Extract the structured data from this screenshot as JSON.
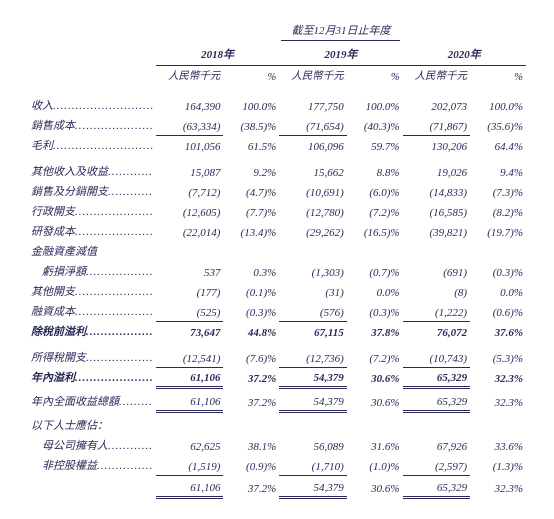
{
  "header": {
    "summary_title": "截至12月31日止年度",
    "years": [
      "2018年",
      "2019年",
      "2020年"
    ],
    "sub_num": "人民幣千元",
    "sub_pct": "%"
  },
  "rows": [
    {
      "type": "data",
      "label": "收入",
      "v": [
        "164,390",
        "100.0%",
        "177,750",
        "100.0%",
        "202,073",
        "100.0%"
      ],
      "gap": "sect-gap"
    },
    {
      "type": "data",
      "label": "銷售成本",
      "v": [
        "(63,334)",
        "(38.5)%",
        "(71,654)",
        "(40.3)%",
        "(71,867)",
        "(35.6)%"
      ],
      "underline_num": true
    },
    {
      "type": "data",
      "label": "毛利",
      "v": [
        "101,056",
        "61.5%",
        "106,096",
        "59.7%",
        "130,206",
        "64.4%"
      ]
    },
    {
      "type": "data",
      "label": "其他收入及收益",
      "v": [
        "15,087",
        "9.2%",
        "15,662",
        "8.8%",
        "19,026",
        "9.4%"
      ],
      "gap": "sect-gap"
    },
    {
      "type": "data",
      "label": "銷售及分銷開支",
      "v": [
        "(7,712)",
        "(4.7)%",
        "(10,691)",
        "(6.0)%",
        "(14,833)",
        "(7.3)%"
      ]
    },
    {
      "type": "data",
      "label": "行政開支",
      "v": [
        "(12,605)",
        "(7.7)%",
        "(12,780)",
        "(7.2)%",
        "(16,585)",
        "(8.2)%"
      ]
    },
    {
      "type": "data",
      "label": "研發成本",
      "v": [
        "(22,014)",
        "(13.4)%",
        "(29,262)",
        "(16.5)%",
        "(39,821)",
        "(19.7)%"
      ]
    },
    {
      "type": "plain",
      "label": "金融資產減值"
    },
    {
      "type": "data",
      "label": "　虧損淨額",
      "v": [
        "537",
        "0.3%",
        "(1,303)",
        "(0.7)%",
        "(691)",
        "(0.3)%"
      ]
    },
    {
      "type": "data",
      "label": "其他開支",
      "v": [
        "(177)",
        "(0.1)%",
        "(31)",
        "0.0%",
        "(8)",
        "0.0%"
      ]
    },
    {
      "type": "data",
      "label": "融資成本",
      "v": [
        "(525)",
        "(0.3)%",
        "(576)",
        "(0.3)%",
        "(1,222)",
        "(0.6)%"
      ],
      "underline_num": true
    },
    {
      "type": "data",
      "label": "除稅前溢利",
      "v": [
        "73,647",
        "44.8%",
        "67,115",
        "37.8%",
        "76,072",
        "37.6%"
      ],
      "bold": true
    },
    {
      "type": "data",
      "label": "所得稅開支",
      "v": [
        "(12,541)",
        "(7.6)%",
        "(12,736)",
        "(7.2)%",
        "(10,743)",
        "(5.3)%"
      ],
      "gap": "sect-gap",
      "underline_num": true
    },
    {
      "type": "data",
      "label": "年內溢利",
      "v": [
        "61,106",
        "37.2%",
        "54,379",
        "30.6%",
        "65,329",
        "32.3%"
      ],
      "bold": true,
      "double_num": true
    },
    {
      "type": "data",
      "label": "年內全面收益總額",
      "v": [
        "61,106",
        "37.2%",
        "54,379",
        "30.6%",
        "65,329",
        "32.3%"
      ],
      "gap": "sect-gap-sm",
      "double_num": true
    },
    {
      "type": "plain",
      "label": "以下人士應佔：",
      "gap": "sect-gap-sm"
    },
    {
      "type": "data",
      "label": "　母公司擁有人",
      "v": [
        "62,625",
        "38.1%",
        "56,089",
        "31.6%",
        "67,926",
        "33.6%"
      ]
    },
    {
      "type": "data",
      "label": "　非控股權益",
      "v": [
        "(1,519)",
        "(0.9)%",
        "(1,710)",
        "(1.0)%",
        "(2,597)",
        "(1.3)%"
      ],
      "underline_num": true
    },
    {
      "type": "data",
      "label": "",
      "v": [
        "61,106",
        "37.2%",
        "54,379",
        "30.6%",
        "65,329",
        "32.3%"
      ],
      "gap": "sect-gap-sm",
      "double_num": true,
      "nodots": true
    }
  ]
}
